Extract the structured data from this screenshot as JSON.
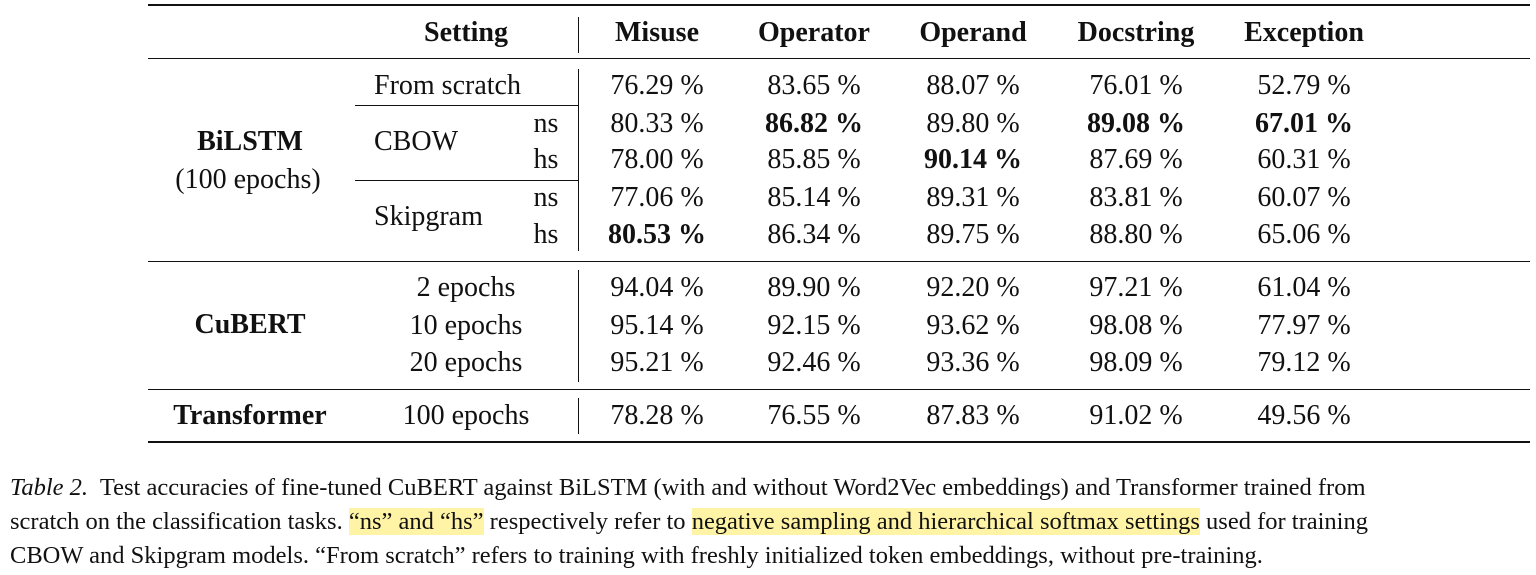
{
  "table": {
    "header": {
      "setting": "Setting",
      "columns": [
        "Misuse",
        "Operator",
        "Operand",
        "Docstring",
        "Exception"
      ]
    },
    "groups": [
      {
        "model": "BiLSTM",
        "model_note": "(100 epochs)",
        "rows": [
          {
            "setting": "From scratch",
            "variant": "",
            "values": [
              "76.29 %",
              "83.65 %",
              "88.07 %",
              "76.01 %",
              "52.79 %"
            ],
            "bold": []
          },
          {
            "setting": "CBOW",
            "variant": "ns",
            "values": [
              "80.33 %",
              "86.82 %",
              "89.80 %",
              "89.08 %",
              "67.01 %"
            ],
            "bold": [
              1,
              3,
              4
            ]
          },
          {
            "setting": "",
            "variant": "hs",
            "values": [
              "78.00 %",
              "85.85 %",
              "90.14 %",
              "87.69 %",
              "60.31 %"
            ],
            "bold": [
              2
            ]
          },
          {
            "setting": "Skipgram",
            "variant": "ns",
            "values": [
              "77.06 %",
              "85.14 %",
              "89.31 %",
              "83.81 %",
              "60.07 %"
            ],
            "bold": []
          },
          {
            "setting": "",
            "variant": "hs",
            "values": [
              "80.53 %",
              "86.34 %",
              "89.75 %",
              "88.80 %",
              "65.06 %"
            ],
            "bold": [
              0
            ]
          }
        ]
      },
      {
        "model": "CuBERT",
        "model_note": "",
        "rows": [
          {
            "setting": "2 epochs",
            "variant": "",
            "values": [
              "94.04 %",
              "89.90 %",
              "92.20 %",
              "97.21 %",
              "61.04 %"
            ],
            "bold": []
          },
          {
            "setting": "10 epochs",
            "variant": "",
            "values": [
              "95.14 %",
              "92.15 %",
              "93.62 %",
              "98.08 %",
              "77.97 %"
            ],
            "bold": []
          },
          {
            "setting": "20 epochs",
            "variant": "",
            "values": [
              "95.21 %",
              "92.46 %",
              "93.36 %",
              "98.09 %",
              "79.12 %"
            ],
            "bold": []
          }
        ]
      },
      {
        "model": "Transformer",
        "model_note": "",
        "rows": [
          {
            "setting": "100 epochs",
            "variant": "",
            "values": [
              "78.28 %",
              "76.55 %",
              "87.83 %",
              "91.02 %",
              "49.56 %"
            ],
            "bold": []
          }
        ]
      }
    ]
  },
  "caption": {
    "label": "Table 2.",
    "line1": "Test accuracies of fine-tuned CuBERT against BiLSTM (with and without Word2Vec embeddings) and Transformer trained from",
    "line2_a": "scratch on the classification tasks.",
    "line2_hl1": "“ns” and “hs”",
    "line2_b": "respectively refer to",
    "line2_hl2": "negative sampling and hierarchical softmax settings",
    "line2_c": "used for training",
    "line3": "CBOW and Skipgram models. “From scratch” refers to training with freshly initialized token embeddings, without pre-training."
  }
}
